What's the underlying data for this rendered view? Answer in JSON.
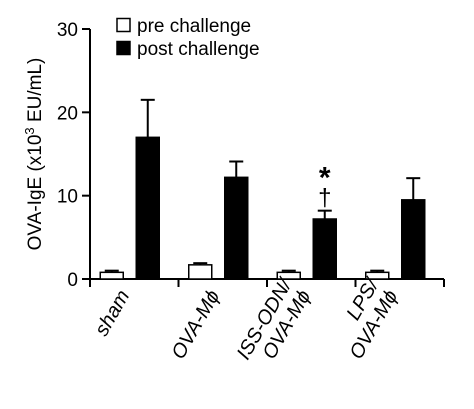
{
  "chart_data": {
    "type": "bar",
    "categories": [
      {
        "lines": [
          "sham"
        ]
      },
      {
        "lines": [
          "OVA-M",
          "ϕ"
        ]
      },
      {
        "lines": [
          "ISS-ODN/",
          "OVA-M",
          "ϕ"
        ]
      },
      {
        "lines": [
          "LPS/",
          "OVA-M",
          "ϕ"
        ]
      }
    ],
    "category_text": [
      "sham",
      "OVA-Mϕ",
      "ISS-ODN/OVA-Mϕ",
      "LPS/OVA-Mϕ"
    ],
    "series": [
      {
        "name": "pre challenge",
        "color": "#ffffff",
        "values": [
          0.8,
          1.7,
          0.8,
          0.8
        ],
        "errors": [
          0.2,
          0.2,
          0.2,
          0.2
        ]
      },
      {
        "name": "post challenge",
        "color": "#000000",
        "values": [
          17.0,
          12.2,
          7.2,
          9.5
        ],
        "errors": [
          4.5,
          1.9,
          1.0,
          2.6
        ]
      }
    ],
    "ylabel_prefix": "OVA-IgE (x10",
    "ylabel_sup": "3",
    "ylabel_suffix": " EU/mL)",
    "ylim": [
      0,
      30
    ],
    "yticks": [
      "0",
      "10",
      "20",
      "30"
    ],
    "annotations": [
      {
        "category_index": 2,
        "series_index": 1,
        "symbols": [
          "†",
          "*"
        ]
      }
    ],
    "legend_position": "top-left",
    "grid": false
  }
}
